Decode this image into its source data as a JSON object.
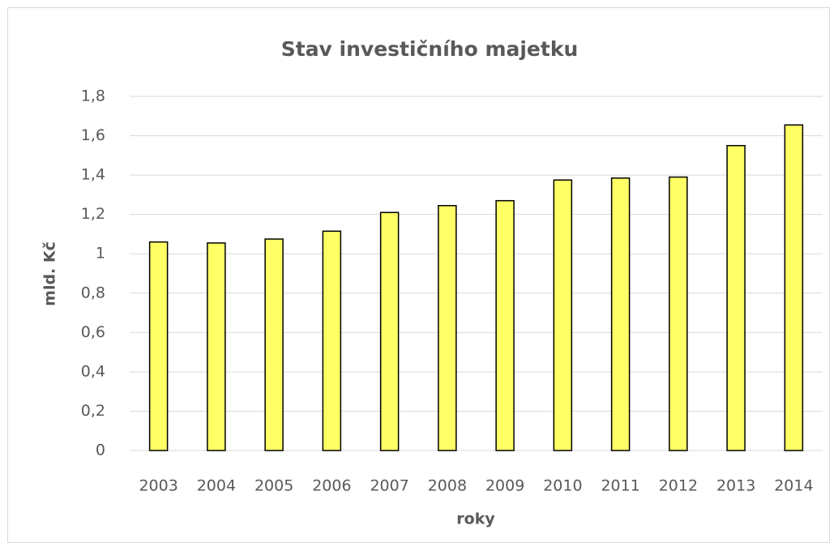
{
  "chart_data": {
    "type": "bar",
    "title": "Stav investičního majetku",
    "x_label": "roky",
    "y_label": "mld. Kč",
    "categories": [
      "2003",
      "2004",
      "2005",
      "2006",
      "2007",
      "2008",
      "2009",
      "2010",
      "2011",
      "2012",
      "2013",
      "2014"
    ],
    "values": [
      1.06,
      1.055,
      1.075,
      1.115,
      1.21,
      1.245,
      1.27,
      1.375,
      1.385,
      1.39,
      1.55,
      1.655
    ],
    "color": "#ffff66",
    "ylim": [
      0,
      1.8
    ],
    "yticks": [
      0,
      {
        "value": 0.2,
        "label": "0,2"
      },
      {
        "value": 0.4,
        "label": "0,4"
      },
      {
        "value": 0.6,
        "label": "0,6"
      },
      {
        "value": 0.8,
        "label": "0,8"
      },
      1,
      {
        "value": 1.2,
        "label": "1,2"
      },
      {
        "value": 1.4,
        "label": "1,4"
      },
      {
        "value": 1.6,
        "label": "1,6"
      },
      {
        "value": 1.8,
        "label": "1,8"
      }
    ],
    "grid": true
  }
}
